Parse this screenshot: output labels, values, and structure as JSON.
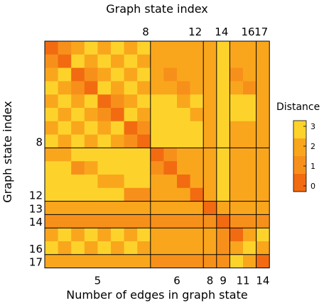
{
  "chart_data": {
    "type": "heatmap",
    "title": "",
    "xlabel": "Number of edges in graph state",
    "x2label": "Graph state index",
    "ylabel": "Graph state index",
    "n": 17,
    "top_ticks": [
      {
        "index": 8,
        "label": "8"
      },
      {
        "index": 12,
        "label": "12"
      },
      {
        "index": 14,
        "label": "14"
      },
      {
        "index": 16,
        "label": "16"
      },
      {
        "index": 17,
        "label": "17"
      }
    ],
    "left_ticks": [
      {
        "index": 8,
        "label": "8"
      },
      {
        "index": 12,
        "label": "12"
      },
      {
        "index": 13,
        "label": "13"
      },
      {
        "index": 14,
        "label": "14"
      },
      {
        "index": 16,
        "label": "16"
      },
      {
        "index": 17,
        "label": "17"
      }
    ],
    "groups": [
      {
        "label": "5",
        "start": 1,
        "end": 8
      },
      {
        "label": "6",
        "start": 9,
        "end": 12
      },
      {
        "label": "8",
        "start": 13,
        "end": 13
      },
      {
        "label": "9",
        "start": 14,
        "end": 14
      },
      {
        "label": "11",
        "start": 15,
        "end": 16
      },
      {
        "label": "14",
        "start": 17,
        "end": 17
      }
    ],
    "legend": {
      "title": "Distance",
      "ticks": [
        "3",
        "2",
        "1",
        "0"
      ],
      "range": [
        0,
        3
      ]
    },
    "colors": {
      "d0": "#f26b11",
      "d1": "#f7901a",
      "d2": "#f9a61d",
      "d3": "#fdd32b"
    },
    "matrix": [
      [
        0,
        1,
        2,
        3,
        2,
        3,
        2,
        3,
        2,
        2,
        2,
        2,
        2,
        3,
        2,
        2,
        2
      ],
      [
        1,
        0,
        3,
        2,
        3,
        2,
        3,
        2,
        2,
        2,
        2,
        2,
        2,
        3,
        2,
        2,
        2
      ],
      [
        2,
        3,
        0,
        1,
        2,
        3,
        2,
        3,
        2,
        1,
        2,
        2,
        2,
        3,
        1,
        2,
        2
      ],
      [
        3,
        2,
        1,
        0,
        3,
        2,
        3,
        2,
        2,
        2,
        1,
        2,
        2,
        3,
        2,
        1,
        2
      ],
      [
        2,
        3,
        2,
        3,
        0,
        1,
        2,
        3,
        3,
        3,
        2,
        3,
        2,
        3,
        3,
        3,
        2
      ],
      [
        3,
        2,
        3,
        2,
        1,
        0,
        3,
        2,
        3,
        3,
        3,
        2,
        2,
        3,
        3,
        3,
        2
      ],
      [
        2,
        3,
        2,
        3,
        2,
        3,
        0,
        1,
        3,
        3,
        3,
        3,
        2,
        3,
        2,
        2,
        2
      ],
      [
        3,
        2,
        3,
        2,
        3,
        2,
        1,
        0,
        3,
        3,
        3,
        3,
        2,
        3,
        2,
        2,
        2
      ],
      [
        2,
        2,
        3,
        3,
        3,
        3,
        3,
        3,
        0,
        1,
        2,
        2,
        2,
        3,
        2,
        2,
        2
      ],
      [
        3,
        3,
        1,
        2,
        3,
        3,
        3,
        3,
        1,
        0,
        2,
        2,
        2,
        3,
        2,
        2,
        2
      ],
      [
        3,
        3,
        3,
        3,
        2,
        2,
        3,
        3,
        2,
        2,
        0,
        2,
        2,
        3,
        2,
        2,
        2
      ],
      [
        3,
        3,
        3,
        3,
        3,
        3,
        1,
        1,
        2,
        2,
        2,
        0,
        2,
        3,
        2,
        2,
        2
      ],
      [
        2,
        2,
        2,
        2,
        2,
        2,
        2,
        2,
        2,
        2,
        2,
        2,
        0,
        2,
        2,
        2,
        2
      ],
      [
        1,
        1,
        1,
        1,
        1,
        1,
        1,
        1,
        1,
        1,
        1,
        1,
        1,
        0,
        1,
        1,
        1
      ],
      [
        2,
        3,
        2,
        3,
        2,
        3,
        2,
        3,
        2,
        2,
        2,
        2,
        2,
        1,
        0,
        2,
        3
      ],
      [
        3,
        2,
        3,
        2,
        3,
        2,
        3,
        2,
        2,
        2,
        2,
        2,
        2,
        1,
        2,
        3,
        2
      ],
      [
        2,
        2,
        2,
        2,
        2,
        2,
        2,
        2,
        1,
        1,
        1,
        1,
        1,
        1,
        3,
        2,
        0
      ]
    ]
  }
}
